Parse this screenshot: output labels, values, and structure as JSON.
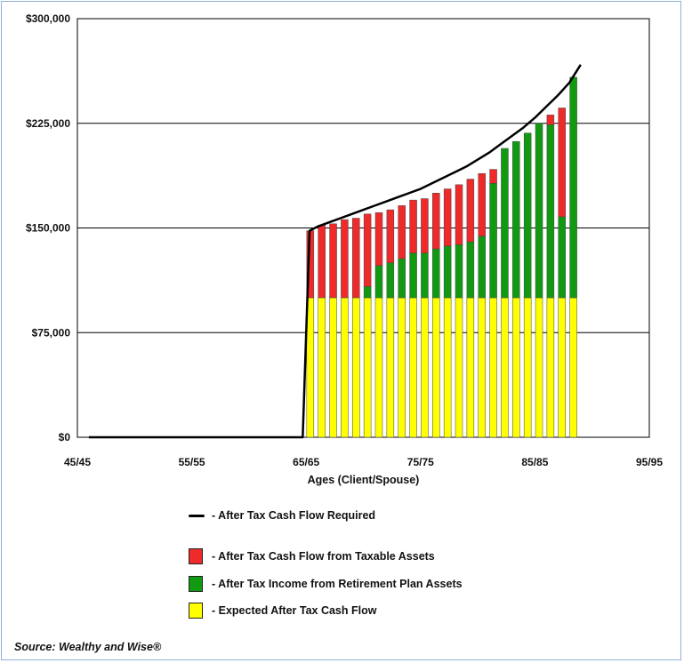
{
  "chart_data": {
    "type": "bar",
    "stacked": true,
    "xlabel": "Ages (Client/Spouse)",
    "ylabel": "",
    "ylim": [
      0,
      300000
    ],
    "xlim": [
      45,
      95
    ],
    "y_ticks": [
      "$0",
      "$75,000",
      "$150,000",
      "$225,000",
      "$300,000"
    ],
    "y_tick_values": [
      0,
      75000,
      150000,
      225000,
      300000
    ],
    "x_ticks": [
      "45/45",
      "55/55",
      "65/65",
      "75/75",
      "85/85",
      "95/95"
    ],
    "x_tick_values": [
      45,
      55,
      65,
      75,
      85,
      95
    ],
    "grid": "horizontal",
    "colors": {
      "taxable": "#ee2a2a",
      "retirement": "#119a11",
      "expected": "#ffff00",
      "required": "#000000"
    },
    "x": [
      65,
      66,
      67,
      68,
      69,
      70,
      71,
      72,
      73,
      74,
      75,
      76,
      77,
      78,
      79,
      80,
      81,
      82,
      83,
      84,
      85,
      86,
      87,
      88
    ],
    "series": [
      {
        "name": "After Tax Cash Flow from Taxable Assets",
        "key": "taxable",
        "values": [
          48000,
          52000,
          53000,
          56000,
          57000,
          52000,
          38000,
          38000,
          38000,
          38000,
          39000,
          40000,
          41000,
          43000,
          45000,
          45000,
          10000,
          0,
          0,
          0,
          0,
          7000,
          78000,
          0
        ]
      },
      {
        "name": "After Tax Income from Retirement Plan Assets",
        "key": "retirement",
        "values": [
          0,
          0,
          0,
          0,
          0,
          8000,
          23000,
          25000,
          28000,
          32000,
          32000,
          35000,
          37000,
          38000,
          40000,
          44000,
          82000,
          107000,
          112000,
          118000,
          125000,
          124000,
          58000,
          158000
        ]
      },
      {
        "name": "Expected After Tax Cash Flow",
        "key": "expected",
        "values": [
          100000,
          100000,
          100000,
          100000,
          100000,
          100000,
          100000,
          100000,
          100000,
          100000,
          100000,
          100000,
          100000,
          100000,
          100000,
          100000,
          100000,
          100000,
          100000,
          100000,
          100000,
          100000,
          100000,
          100000
        ]
      }
    ],
    "required_line": {
      "name": "After Tax Cash Flow Required",
      "x": [
        46,
        64.7,
        65.3,
        66,
        67,
        68,
        69,
        70,
        71,
        72,
        73,
        74,
        75,
        76,
        77,
        78,
        79,
        80,
        81,
        82,
        83,
        84,
        85,
        86,
        87,
        88,
        89
      ],
      "y": [
        0,
        0,
        148000,
        151000,
        154000,
        157000,
        160000,
        163000,
        166000,
        169000,
        172000,
        175000,
        178000,
        182000,
        186000,
        190000,
        194000,
        199000,
        204000,
        210000,
        216000,
        222000,
        229000,
        237000,
        245000,
        254000,
        267000
      ]
    },
    "legend": {
      "placement": "bottom",
      "items": [
        "- After Tax Cash Flow Required",
        "- After Tax Cash Flow from Taxable Assets",
        "- After Tax Income from Retirement Plan Assets",
        "- Expected After Tax Cash Flow"
      ]
    }
  },
  "source": "Source: Wealthy and Wise®"
}
